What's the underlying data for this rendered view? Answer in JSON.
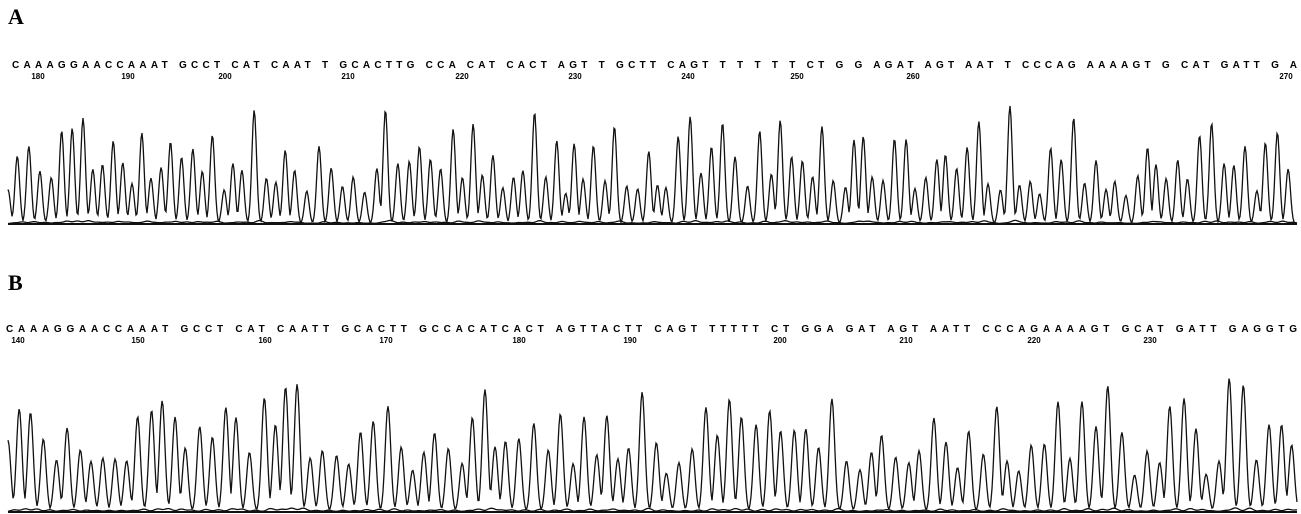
{
  "panels": [
    {
      "label": "A",
      "sequence": "CAAAGGAACCAAAT GCCT CAT CAAT T GCACTTG CCA CAT CACT AGT T GCTT CAGT T T T T T CT G G AGAT AGT AAT T CCCAG AAAAGT G CAT GATT G A",
      "positions": [
        180,
        190,
        200,
        210,
        220,
        230,
        240,
        250,
        260,
        270
      ]
    },
    {
      "label": "B",
      "sequence": "CAAAGGAACCAAAT GCCT CAT CAATT GCACTT GCCACATCACT AGTTACTT CAGT TTTTT CT GGA GAT AGT AATT CCCAGAAAAGT GCAT GATT GAGGTG",
      "positions": [
        140,
        150,
        160,
        170,
        180,
        190,
        200,
        210,
        220,
        230
      ]
    }
  ]
}
